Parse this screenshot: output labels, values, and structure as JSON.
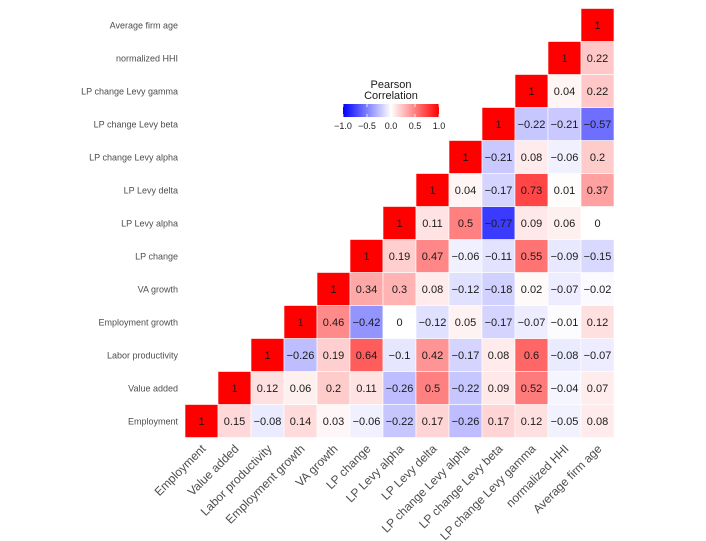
{
  "chart_data": {
    "type": "heatmap",
    "variables": [
      "Employment",
      "Value added",
      "Labor productivity",
      "Employment growth",
      "VA growth",
      "LP change",
      "LP Levy alpha",
      "LP Levy delta",
      "LP change Levy alpha",
      "LP change Levy beta",
      "LP change Levy gamma",
      "normalized HHI",
      "Average firm age"
    ],
    "matrix": [
      [
        1,
        0.15,
        -0.08,
        0.14,
        0.03,
        -0.06,
        -0.22,
        0.17,
        -0.26,
        0.17,
        0.12,
        -0.05,
        0.08
      ],
      [
        0.15,
        1,
        0.12,
        0.06,
        0.2,
        0.11,
        -0.26,
        0.5,
        -0.22,
        0.09,
        0.52,
        -0.04,
        0.07
      ],
      [
        -0.08,
        0.12,
        1,
        -0.26,
        0.19,
        0.64,
        -0.1,
        0.42,
        -0.17,
        0.08,
        0.6,
        -0.08,
        -0.07
      ],
      [
        0.14,
        0.06,
        -0.26,
        1,
        0.46,
        -0.42,
        0,
        -0.12,
        0.05,
        -0.17,
        -0.07,
        -0.01,
        0.12
      ],
      [
        0.03,
        0.2,
        0.19,
        0.46,
        1,
        0.34,
        0.3,
        0.08,
        -0.12,
        -0.18,
        0.02,
        -0.07,
        -0.02
      ],
      [
        -0.06,
        0.11,
        0.64,
        -0.42,
        0.34,
        1,
        0.19,
        0.47,
        -0.06,
        -0.11,
        0.55,
        -0.09,
        -0.15
      ],
      [
        -0.22,
        -0.26,
        -0.1,
        0,
        0.3,
        0.19,
        1,
        0.11,
        0.5,
        -0.77,
        0.09,
        0.06,
        0
      ],
      [
        0.17,
        0.5,
        0.42,
        -0.12,
        0.08,
        0.47,
        0.11,
        1,
        0.04,
        -0.17,
        0.73,
        0.01,
        0.37
      ],
      [
        -0.26,
        -0.22,
        -0.17,
        0.05,
        -0.12,
        -0.06,
        0.5,
        0.04,
        1,
        -0.21,
        0.08,
        -0.06,
        0.2
      ],
      [
        0.17,
        0.09,
        0.08,
        -0.17,
        -0.18,
        -0.11,
        -0.77,
        -0.17,
        -0.21,
        1,
        -0.22,
        -0.21,
        -0.57
      ],
      [
        0.12,
        0.52,
        0.6,
        -0.07,
        0.02,
        0.55,
        0.09,
        0.73,
        0.08,
        -0.22,
        1,
        0.04,
        0.22
      ],
      [
        -0.05,
        -0.04,
        -0.08,
        -0.01,
        -0.07,
        -0.09,
        0.06,
        0.01,
        -0.06,
        -0.21,
        0.04,
        1,
        0.22
      ],
      [
        0.08,
        0.07,
        -0.07,
        0.12,
        -0.02,
        -0.15,
        0,
        0.37,
        0.2,
        -0.57,
        0.22,
        0.22,
        1
      ]
    ],
    "display": "upper-triangle",
    "legend": {
      "title_line1": "Pearson",
      "title_line2": "Correlation",
      "range": [
        -1,
        1
      ],
      "ticks": [
        -1,
        -0.5,
        0,
        0.5,
        1
      ],
      "tick_labels": [
        "−1.0",
        "−0.5",
        "0.0",
        "0.5",
        "1.0"
      ],
      "placement": "top-center"
    },
    "colors": {
      "low": "#0000ff",
      "mid": "#ffffff",
      "high": "#ff0000"
    }
  }
}
